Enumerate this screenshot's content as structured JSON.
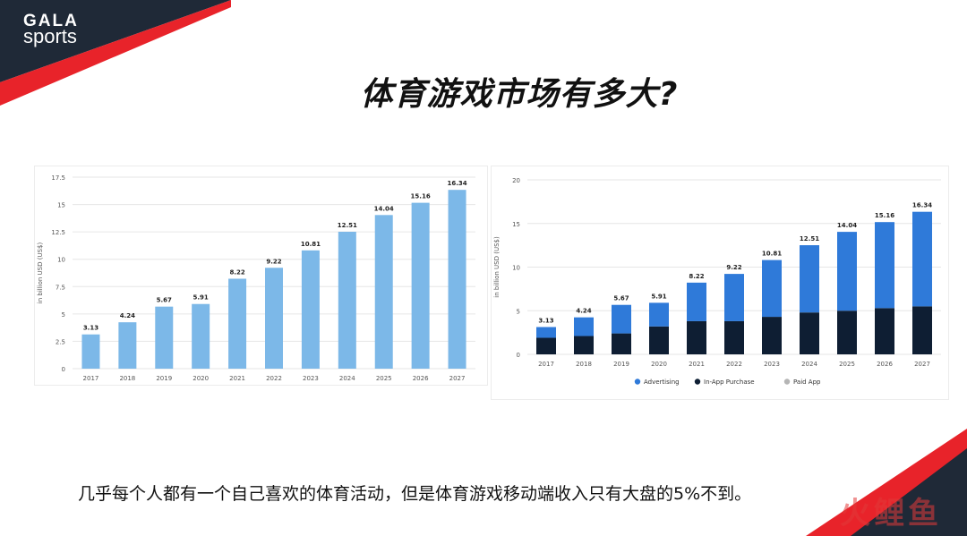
{
  "brand": {
    "line1": "GALA",
    "line2": "sports"
  },
  "slide": {
    "title": "体育游戏市场有多大?",
    "caption": "几乎每个人都有一个自己喜欢的体育活动，但是体育游戏移动端收入只有大盘的5%不到。",
    "watermark": "火鲤鱼"
  },
  "colors": {
    "dark": "#1f2937",
    "red": "#e8232a",
    "light_blue": "#7cb8e8",
    "blue": "#2f7ad9",
    "navy": "#0e1e33",
    "gray": "#b5b5b5"
  },
  "chart_data": [
    {
      "type": "bar",
      "categories": [
        "2017",
        "2018",
        "2019",
        "2020",
        "2021",
        "2022",
        "2023",
        "2024",
        "2025",
        "2026",
        "2027"
      ],
      "values": [
        3.13,
        4.24,
        5.67,
        5.91,
        8.22,
        9.22,
        10.81,
        12.51,
        14.04,
        15.16,
        16.34
      ],
      "value_labels": [
        "3.13",
        "4.24",
        "5.67",
        "5.91",
        "8.22",
        "9.22",
        "10.81",
        "12.51",
        "14.04",
        "15.16",
        "16.34"
      ],
      "ylabel": "in billion USD (US$)",
      "ylim": [
        0,
        17.5
      ],
      "yticks": [
        0,
        2.5,
        5,
        7.5,
        10,
        12.5,
        15,
        17.5
      ],
      "ytick_labels": [
        "0",
        "2.5",
        "5",
        "7.5",
        "10",
        "12.5",
        "15",
        "17.5"
      ],
      "grid": true
    },
    {
      "type": "bar",
      "stacked": true,
      "categories": [
        "2017",
        "2018",
        "2019",
        "2020",
        "2021",
        "2022",
        "2023",
        "2024",
        "2025",
        "2026",
        "2027"
      ],
      "series": [
        {
          "name": "In-App Purchase",
          "values": [
            1.9,
            2.1,
            2.4,
            3.2,
            3.8,
            3.8,
            4.3,
            4.8,
            5.0,
            5.3,
            5.5
          ]
        },
        {
          "name": "Advertising",
          "values": [
            1.23,
            2.14,
            3.27,
            2.71,
            4.42,
            5.42,
            6.51,
            7.71,
            9.04,
            9.86,
            10.84
          ]
        },
        {
          "name": "Paid App",
          "values": [
            0,
            0,
            0,
            0,
            0,
            0,
            0,
            0,
            0,
            0,
            0
          ]
        }
      ],
      "totals": [
        "3.13",
        "4.24",
        "5.67",
        "5.91",
        "8.22",
        "9.22",
        "10.81",
        "12.51",
        "14.04",
        "15.16",
        "16.34"
      ],
      "legend": [
        "Advertising",
        "In-App Purchase",
        "Paid App"
      ],
      "legend_position": "bottom",
      "ylabel": "in billion USD (US$)",
      "ylim": [
        0,
        20
      ],
      "yticks": [
        0,
        5,
        10,
        15,
        20
      ],
      "ytick_labels": [
        "0",
        "5",
        "10",
        "15",
        "20"
      ],
      "grid": true
    }
  ]
}
